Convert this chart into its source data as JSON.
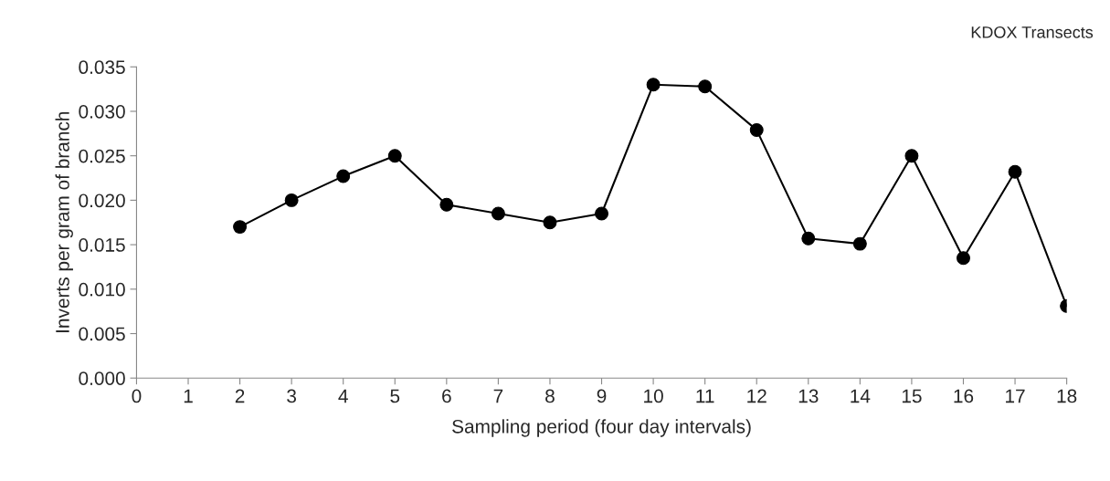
{
  "chart_data": {
    "type": "line",
    "title": "KDOX Transects",
    "xlabel": "Sampling period (four day intervals)",
    "ylabel": "Inverts per gram of branch",
    "x": [
      2,
      3,
      4,
      5,
      6,
      7,
      8,
      9,
      10,
      11,
      12,
      13,
      14,
      15,
      16,
      17,
      18
    ],
    "series": [
      {
        "color": "#000000",
        "values": [
          0.017,
          0.02,
          0.0227,
          0.025,
          0.0195,
          0.0185,
          0.0175,
          0.0185,
          0.033,
          0.0328,
          0.0279,
          0.0157,
          0.0151,
          0.025,
          0.0135,
          0.0232,
          0.0081
        ]
      }
    ],
    "xlim": [
      0,
      18
    ],
    "xticks": [
      0,
      1,
      2,
      3,
      4,
      5,
      6,
      7,
      8,
      9,
      10,
      11,
      12,
      13,
      14,
      15,
      16,
      17,
      18
    ],
    "ylim": [
      0,
      0.035
    ],
    "yticks": [
      {
        "value": 0,
        "label": "0.000"
      },
      {
        "value": 0.005,
        "label": "0.005"
      },
      {
        "value": 0.01,
        "label": "0.010"
      },
      {
        "value": 0.015,
        "label": "0.015"
      },
      {
        "value": 0.02,
        "label": "0.020"
      },
      {
        "value": 0.025,
        "label": "0.025"
      },
      {
        "value": 0.03,
        "label": "0.030"
      },
      {
        "value": 0.035,
        "label": "0.035"
      }
    ],
    "grid": false,
    "legend": false,
    "marker": "circle",
    "line_style": "solid"
  }
}
